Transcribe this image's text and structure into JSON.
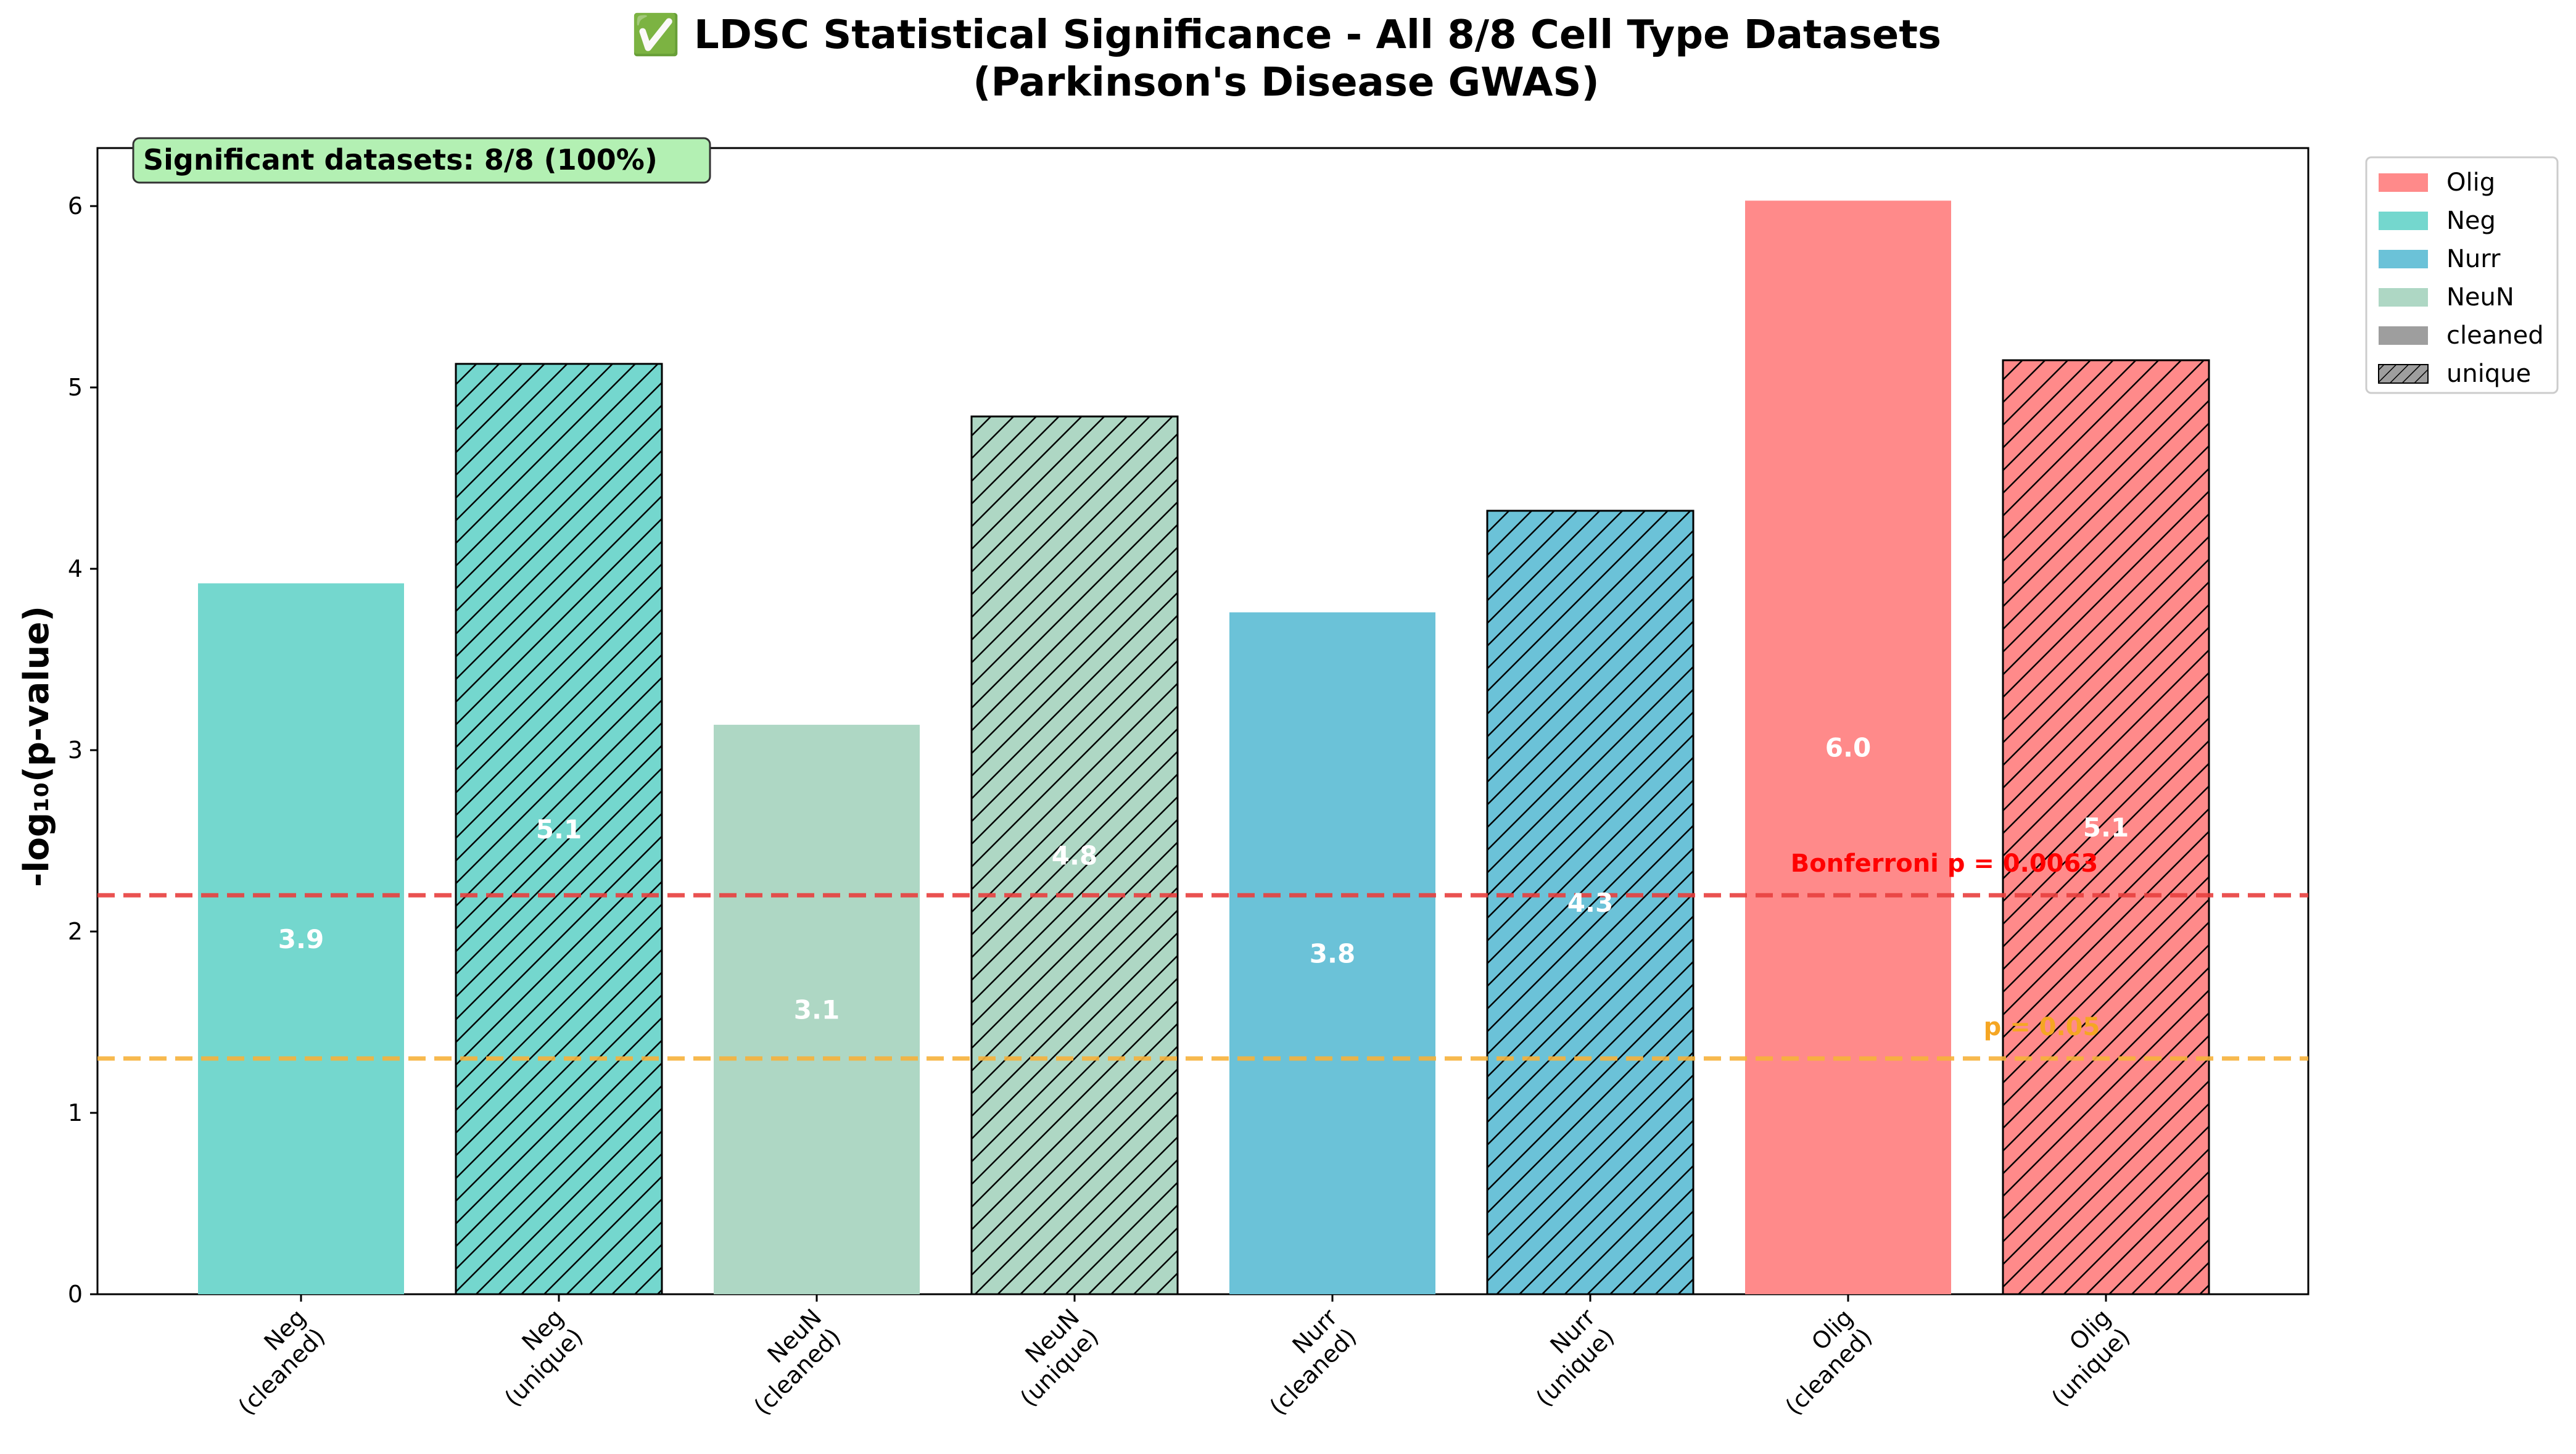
{
  "chart_data": {
    "type": "bar",
    "title": "✅ LDSC Statistical Significance - All 8/8 Cell Type Datasets",
    "subtitle": "(Parkinson's Disease GWAS)",
    "ylabel": "-log₁₀(p-value)",
    "xlabel": "",
    "ylim": [
      0,
      6.32
    ],
    "yticks": [
      0,
      1,
      2,
      3,
      4,
      5,
      6
    ],
    "grid": false,
    "categories": [
      {
        "name": "Neg",
        "kind": "cleaned"
      },
      {
        "name": "Neg",
        "kind": "unique"
      },
      {
        "name": "NeuN",
        "kind": "cleaned"
      },
      {
        "name": "NeuN",
        "kind": "unique"
      },
      {
        "name": "Nurr",
        "kind": "cleaned"
      },
      {
        "name": "Nurr",
        "kind": "unique"
      },
      {
        "name": "Olig",
        "kind": "cleaned"
      },
      {
        "name": "Olig",
        "kind": "unique"
      }
    ],
    "values": [
      3.92,
      5.13,
      3.14,
      4.84,
      3.76,
      4.32,
      6.03,
      5.15
    ],
    "value_labels": [
      "3.9",
      "5.1",
      "3.1",
      "4.8",
      "3.8",
      "4.3",
      "6.0",
      "5.1"
    ],
    "colors": {
      "Olig": "#ff8a8a",
      "Neg": "#74d7ce",
      "Nurr": "#6bc2d8",
      "NeuN": "#aed7c4"
    },
    "reference_lines": [
      {
        "label": "Bonferroni p = 0.0063",
        "value": 2.2,
        "color": "#e8403f",
        "text_color": "#ff0000"
      },
      {
        "label": "p = 0.05",
        "value": 1.3,
        "color": "#f7b23b",
        "text_color": "#f5a623"
      }
    ],
    "annotation": {
      "text": "Significant datasets: 8/8 (100%)",
      "bg": "#b3f0b3"
    },
    "legend": {
      "placement": "outside top-right",
      "entries": [
        {
          "label": "Olig",
          "color": "#ff8a8a",
          "hatch": false
        },
        {
          "label": "Neg",
          "color": "#74d7ce",
          "hatch": false
        },
        {
          "label": "Nurr",
          "color": "#6bc2d8",
          "hatch": false
        },
        {
          "label": "NeuN",
          "color": "#aed7c4",
          "hatch": false
        },
        {
          "label": "cleaned",
          "color": "#9e9e9e",
          "hatch": false
        },
        {
          "label": "unique",
          "color": "#9e9e9e",
          "hatch": true
        }
      ]
    }
  }
}
